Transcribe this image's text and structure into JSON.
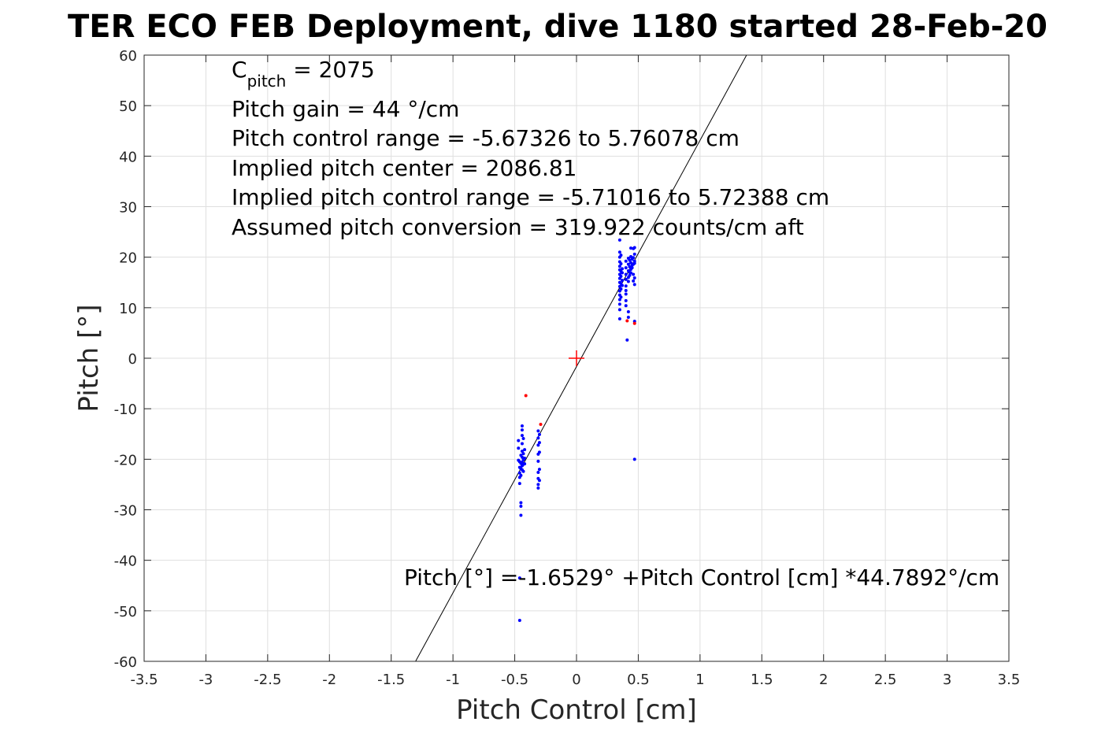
{
  "title": "TER ECO FEB Deployment, dive 1180 started 28-Feb-20",
  "chart_data": {
    "type": "scatter",
    "title": "TER ECO FEB Deployment, dive 1180 started 28-Feb-20",
    "xlabel": "Pitch Control [cm]",
    "ylabel": "Pitch [°]",
    "xlim": [
      -3.5,
      3.5
    ],
    "ylim": [
      -60,
      60
    ],
    "grid": true,
    "xticks": [
      "-3.5",
      "-3",
      "-2.5",
      "-2",
      "-1.5",
      "-1",
      "-0.5",
      "0",
      "0.5",
      "1",
      "1.5",
      "2",
      "2.5",
      "3",
      "3.5"
    ],
    "yticks": [
      "60",
      "50",
      "40",
      "30",
      "20",
      "10",
      "0",
      "-10",
      "-20",
      "-30",
      "-40",
      "-50",
      "-60"
    ],
    "xtick_values": [
      -3.5,
      -3,
      -2.5,
      -2,
      -1.5,
      -1,
      -0.5,
      0,
      0.5,
      1,
      1.5,
      2,
      2.5,
      3,
      3.5
    ],
    "ytick_values": [
      60,
      50,
      40,
      30,
      20,
      10,
      0,
      -10,
      -20,
      -30,
      -40,
      -50,
      -60
    ],
    "fit_line": {
      "intercept": -1.6529,
      "slope": 44.7892,
      "color": "#000000"
    },
    "center_marker": {
      "x": 0,
      "y": 0,
      "color": "#ff0000"
    },
    "series": [
      {
        "color": "#0000ff",
        "points": [
          [
            -0.47,
            -16.3
          ],
          [
            -0.47,
            -17.8
          ],
          [
            -0.47,
            -20.2
          ],
          [
            -0.46,
            -20.5
          ],
          [
            -0.46,
            -21.6
          ],
          [
            -0.46,
            -22.7
          ],
          [
            -0.46,
            -23.6
          ],
          [
            -0.46,
            -24.8
          ],
          [
            -0.45,
            -19.2
          ],
          [
            -0.45,
            -20.8
          ],
          [
            -0.45,
            -21.9
          ],
          [
            -0.45,
            -23.2
          ],
          [
            -0.45,
            -28.6
          ],
          [
            -0.45,
            -29.3
          ],
          [
            -0.45,
            -31.1
          ],
          [
            -0.46,
            -51.9
          ],
          [
            -0.46,
            -43.5
          ],
          [
            -0.44,
            -13.4
          ],
          [
            -0.44,
            -14.2
          ],
          [
            -0.44,
            -15.3
          ],
          [
            -0.44,
            -16.9
          ],
          [
            -0.44,
            -18.4
          ],
          [
            -0.44,
            -19.6
          ],
          [
            -0.44,
            -20.6
          ],
          [
            -0.44,
            -21.3
          ],
          [
            -0.44,
            -22.1
          ],
          [
            -0.43,
            -15.9
          ],
          [
            -0.43,
            -18.9
          ],
          [
            -0.43,
            -20.1
          ],
          [
            -0.43,
            -21.0
          ],
          [
            -0.43,
            -22.4
          ],
          [
            -0.42,
            -18.1
          ],
          [
            -0.42,
            -19.8
          ],
          [
            -0.42,
            -20.9
          ],
          [
            -0.31,
            -14.4
          ],
          [
            -0.31,
            -15.8
          ],
          [
            -0.31,
            -17.2
          ],
          [
            -0.31,
            -19.0
          ],
          [
            -0.31,
            -20.4
          ],
          [
            -0.31,
            -22.6
          ],
          [
            -0.31,
            -23.8
          ],
          [
            -0.31,
            -25.0
          ],
          [
            -0.31,
            -25.7
          ],
          [
            -0.3,
            -15.1
          ],
          [
            -0.3,
            -16.7
          ],
          [
            -0.3,
            -18.6
          ],
          [
            -0.3,
            -22.0
          ],
          [
            -0.3,
            -24.2
          ],
          [
            0.35,
            23.4
          ],
          [
            0.35,
            21.0
          ],
          [
            0.35,
            20.0
          ],
          [
            0.35,
            19.1
          ],
          [
            0.35,
            18.2
          ],
          [
            0.35,
            17.5
          ],
          [
            0.35,
            16.6
          ],
          [
            0.35,
            15.8
          ],
          [
            0.35,
            15.0
          ],
          [
            0.35,
            14.2
          ],
          [
            0.35,
            13.3
          ],
          [
            0.35,
            12.5
          ],
          [
            0.35,
            11.6
          ],
          [
            0.35,
            10.7
          ],
          [
            0.35,
            9.6
          ],
          [
            0.35,
            7.8
          ],
          [
            0.36,
            20.4
          ],
          [
            0.36,
            18.7
          ],
          [
            0.36,
            17.2
          ],
          [
            0.36,
            16.2
          ],
          [
            0.36,
            14.8
          ],
          [
            0.36,
            13.7
          ],
          [
            0.36,
            12.1
          ],
          [
            0.37,
            17.7
          ],
          [
            0.37,
            16.9
          ],
          [
            0.37,
            15.4
          ],
          [
            0.37,
            14.4
          ],
          [
            0.4,
            19.2
          ],
          [
            0.4,
            17.9
          ],
          [
            0.4,
            16.6
          ],
          [
            0.4,
            15.6
          ],
          [
            0.4,
            14.3
          ],
          [
            0.4,
            13.4
          ],
          [
            0.4,
            12.7
          ],
          [
            0.4,
            11.4
          ],
          [
            0.4,
            10.4
          ],
          [
            0.41,
            3.6
          ],
          [
            0.42,
            19.8
          ],
          [
            0.42,
            18.6
          ],
          [
            0.42,
            17.3
          ],
          [
            0.42,
            16.0
          ],
          [
            0.42,
            15.2
          ],
          [
            0.42,
            9.2
          ],
          [
            0.42,
            8.1
          ],
          [
            0.43,
            19.4
          ],
          [
            0.43,
            18.1
          ],
          [
            0.43,
            17.0
          ],
          [
            0.43,
            16.4
          ],
          [
            0.44,
            21.8
          ],
          [
            0.44,
            20.1
          ],
          [
            0.44,
            18.9
          ],
          [
            0.44,
            17.6
          ],
          [
            0.44,
            16.9
          ],
          [
            0.45,
            19.6
          ],
          [
            0.45,
            18.4
          ],
          [
            0.45,
            17.9
          ],
          [
            0.46,
            21.7
          ],
          [
            0.46,
            19.9
          ],
          [
            0.46,
            18.6
          ],
          [
            0.46,
            16.6
          ],
          [
            0.46,
            15.3
          ],
          [
            0.47,
            21.9
          ],
          [
            0.47,
            20.6
          ],
          [
            0.47,
            19.2
          ],
          [
            0.47,
            18.8
          ],
          [
            0.47,
            15.9
          ],
          [
            0.47,
            14.6
          ],
          [
            0.47,
            7.3
          ],
          [
            0.47,
            -20.0
          ]
        ]
      },
      {
        "color": "#ff0000",
        "points": [
          [
            -0.41,
            -7.4
          ],
          [
            -0.29,
            -13.1
          ],
          [
            0.41,
            7.4
          ],
          [
            0.47,
            6.9
          ]
        ]
      }
    ]
  },
  "annotations": {
    "c_pitch_main": "C",
    "c_pitch_sub": "pitch",
    "c_pitch_value": " = 2075",
    "line2": "Pitch gain = 44 °/cm",
    "line3": "Pitch control range = -5.67326 to 5.76078 cm",
    "line4": "Implied pitch center = 2086.81",
    "line5": "Implied pitch control range = -5.71016 to 5.72388 cm",
    "line6": "Assumed pitch conversion = 319.922 counts/cm aft",
    "fit_text": "Pitch [°] =-1.6529° +Pitch Control [cm] *44.7892°/cm"
  }
}
